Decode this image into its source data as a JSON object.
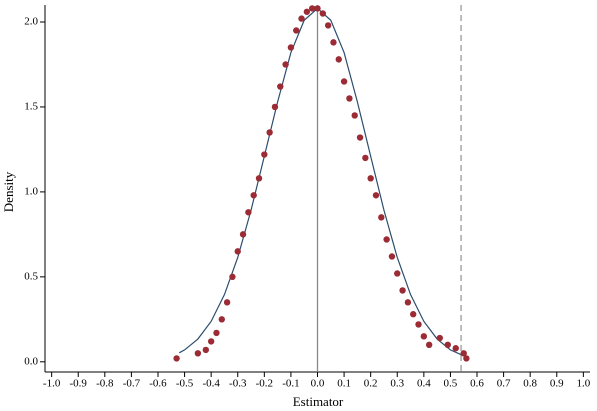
{
  "chart_data": {
    "type": "scatter",
    "xlabel": "Estimator",
    "ylabel": "Density",
    "xlim": [
      -1.025,
      1.025
    ],
    "ylim": [
      -0.06,
      2.1
    ],
    "xticks": [
      {
        "value": -1.0,
        "label": "-1.0"
      },
      {
        "value": -0.9,
        "label": "-0.9"
      },
      {
        "value": -0.8,
        "label": "-0.8"
      },
      {
        "value": -0.7,
        "label": "-0.7"
      },
      {
        "value": -0.6,
        "label": "-0.6"
      },
      {
        "value": -0.5,
        "label": "-0.5"
      },
      {
        "value": -0.4,
        "label": "-0.4"
      },
      {
        "value": -0.3,
        "label": "-0.3"
      },
      {
        "value": -0.2,
        "label": "-0.2"
      },
      {
        "value": -0.1,
        "label": "-0.1"
      },
      {
        "value": 0,
        "label": "0.0"
      },
      0.1,
      0.2,
      0.3,
      0.4,
      0.5,
      0.6,
      0.7,
      0.8,
      0.9,
      {
        "value": 1.0,
        "label": "1.0"
      }
    ],
    "yticks": [
      {
        "value": 0,
        "label": "0.0"
      },
      0.5,
      {
        "value": 1.0,
        "label": "1.0"
      },
      1.5,
      {
        "value": 2.0,
        "label": "2.0"
      }
    ],
    "reference_lines": [
      {
        "x": 0,
        "style": "solid",
        "color": "#888888"
      },
      {
        "x": 0.54,
        "style": "dashed",
        "color": "#999999"
      }
    ],
    "series": [
      {
        "type": "line",
        "color": "#2b4d6e",
        "x": [
          -0.52,
          -0.5,
          -0.45,
          -0.4,
          -0.35,
          -0.3,
          -0.25,
          -0.2,
          -0.15,
          -0.1,
          -0.05,
          0,
          0.05,
          0.1,
          0.15,
          0.2,
          0.25,
          0.3,
          0.35,
          0.4,
          0.45,
          0.5,
          0.55
        ],
        "y": [
          0.053,
          0.07,
          0.134,
          0.238,
          0.396,
          0.614,
          0.892,
          1.21,
          1.53,
          1.82,
          2.01,
          2.08,
          2.01,
          1.82,
          1.53,
          1.21,
          0.892,
          0.614,
          0.396,
          0.238,
          0.134,
          0.07,
          0.035
        ]
      },
      {
        "type": "scatter",
        "color": "#9b2b35",
        "x": [
          -0.53,
          -0.45,
          -0.42,
          -0.4,
          -0.38,
          -0.36,
          -0.34,
          -0.32,
          -0.3,
          -0.28,
          -0.26,
          -0.24,
          -0.22,
          -0.2,
          -0.18,
          -0.16,
          -0.14,
          -0.12,
          -0.1,
          -0.08,
          -0.06,
          -0.04,
          -0.02,
          0,
          0.02,
          0.04,
          0.06,
          0.08,
          0.1,
          0.12,
          0.14,
          0.16,
          0.18,
          0.2,
          0.22,
          0.24,
          0.26,
          0.28,
          0.3,
          0.32,
          0.34,
          0.36,
          0.38,
          0.4,
          0.42,
          0.46,
          0.49,
          0.52,
          0.55,
          0.56
        ],
        "y": [
          0.02,
          0.05,
          0.07,
          0.12,
          0.17,
          0.25,
          0.35,
          0.5,
          0.65,
          0.75,
          0.88,
          0.98,
          1.08,
          1.22,
          1.35,
          1.5,
          1.62,
          1.75,
          1.85,
          1.95,
          2.02,
          2.06,
          2.08,
          2.08,
          2.05,
          1.98,
          1.88,
          1.78,
          1.65,
          1.55,
          1.45,
          1.32,
          1.2,
          1.08,
          0.98,
          0.85,
          0.72,
          0.62,
          0.52,
          0.42,
          0.35,
          0.28,
          0.22,
          0.15,
          0.1,
          0.14,
          0.1,
          0.08,
          0.05,
          0.02
        ]
      }
    ]
  }
}
